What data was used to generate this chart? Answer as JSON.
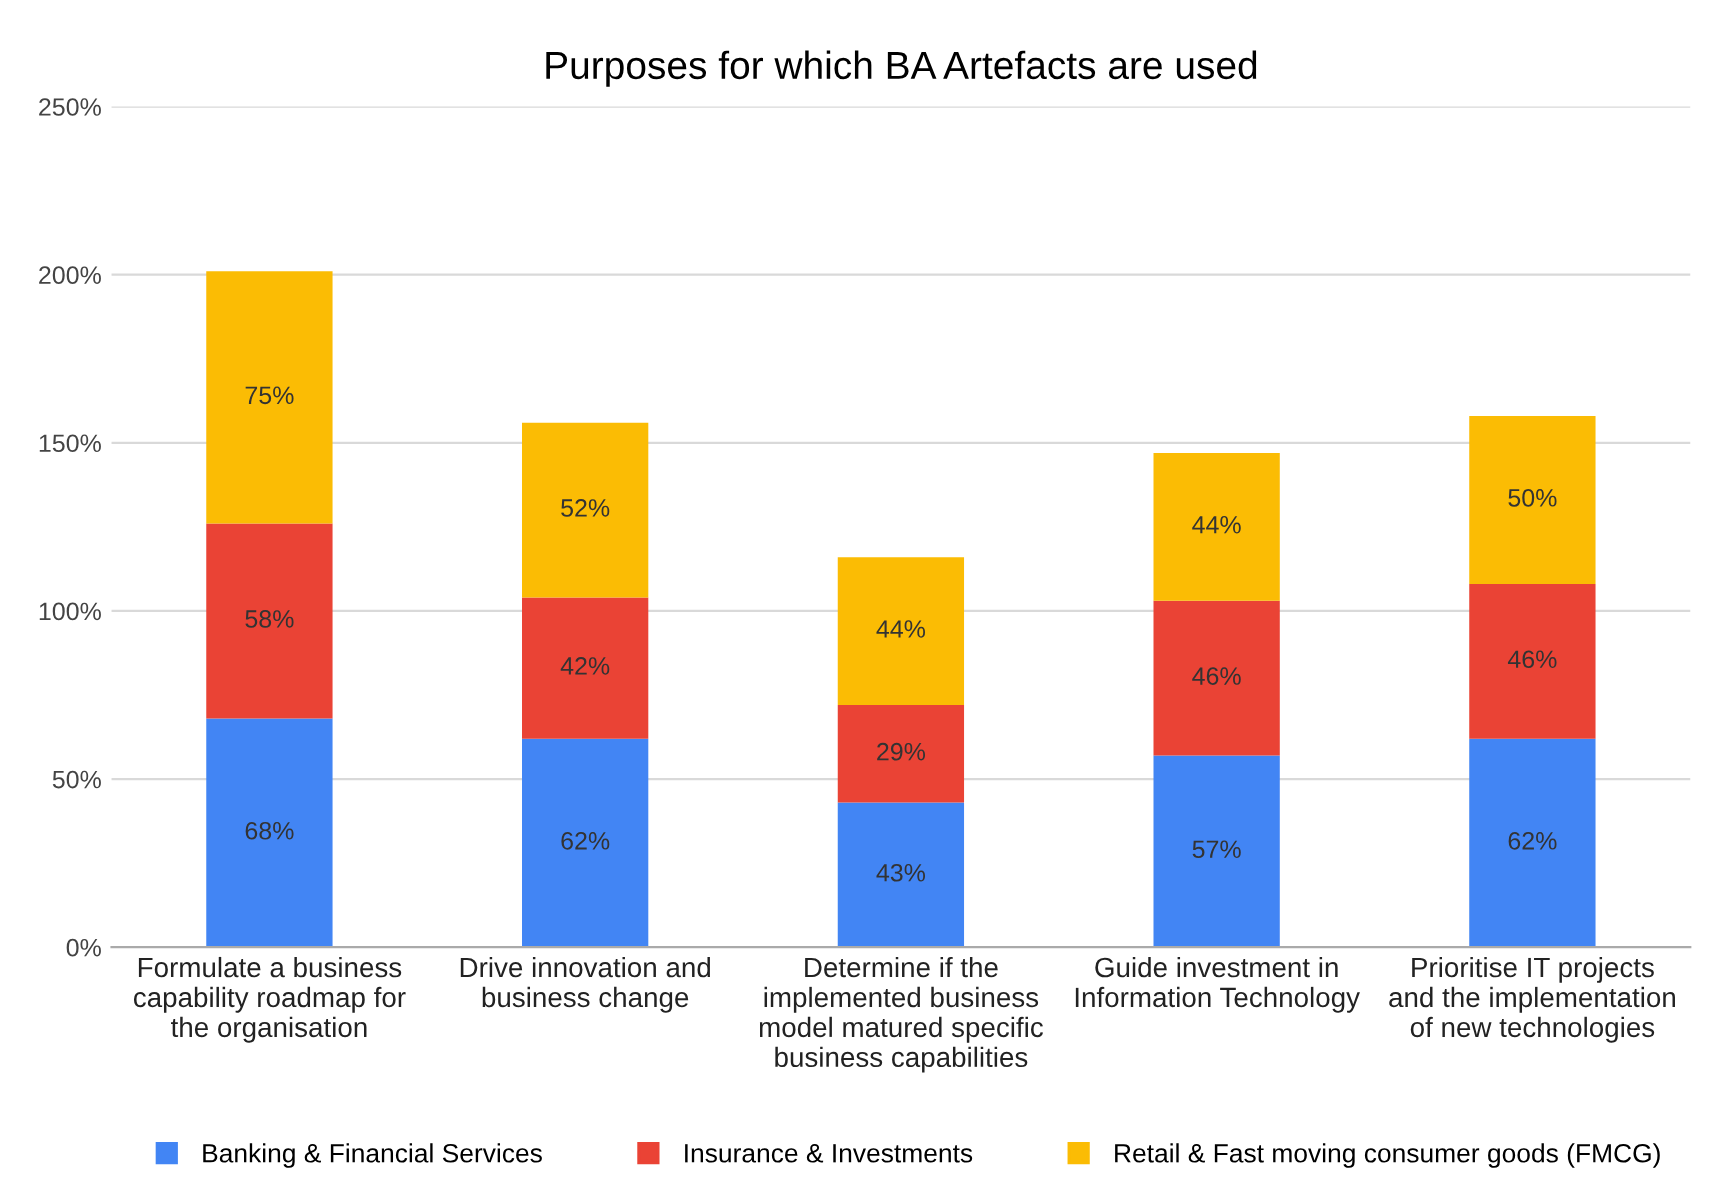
{
  "chart_data": {
    "type": "bar",
    "stacked": true,
    "title": "Purposes for which BA Artefacts are used",
    "categories": [
      "Formulate a business capability roadmap for the organisation",
      "Drive innovation and business change",
      "Determine if the implemented business model matured specific business capabilities",
      "Guide investment in Information Technology",
      "Prioritise IT projects and the implementation of new technologies"
    ],
    "series": [
      {
        "name": "Banking & Financial Services",
        "color": "#4285f4",
        "values": [
          68,
          62,
          43,
          57,
          62
        ],
        "value_labels": [
          "68%",
          "62%",
          "43%",
          "57%",
          "62%"
        ]
      },
      {
        "name": "Insurance & Investments",
        "color": "#ea4335",
        "values": [
          58,
          42,
          29,
          46,
          46
        ],
        "value_labels": [
          "58%",
          "42%",
          "29%",
          "46%",
          "46%"
        ]
      },
      {
        "name": "Retail & Fast moving consumer goods (FMCG)",
        "color": "#fbbc04",
        "values": [
          75,
          52,
          44,
          44,
          50
        ],
        "value_labels": [
          "75%",
          "52%",
          "44%",
          "44%",
          "50%"
        ]
      }
    ],
    "ylim": [
      0,
      250
    ],
    "yticks": [
      {
        "value": 0,
        "label": "0%"
      },
      {
        "value": 50,
        "label": "50%"
      },
      {
        "value": 100,
        "label": "100%"
      },
      {
        "value": 150,
        "label": "150%"
      },
      {
        "value": 200,
        "label": "200%"
      },
      {
        "value": 250,
        "label": "250%"
      }
    ],
    "grid": "y",
    "legend": "bottom"
  }
}
